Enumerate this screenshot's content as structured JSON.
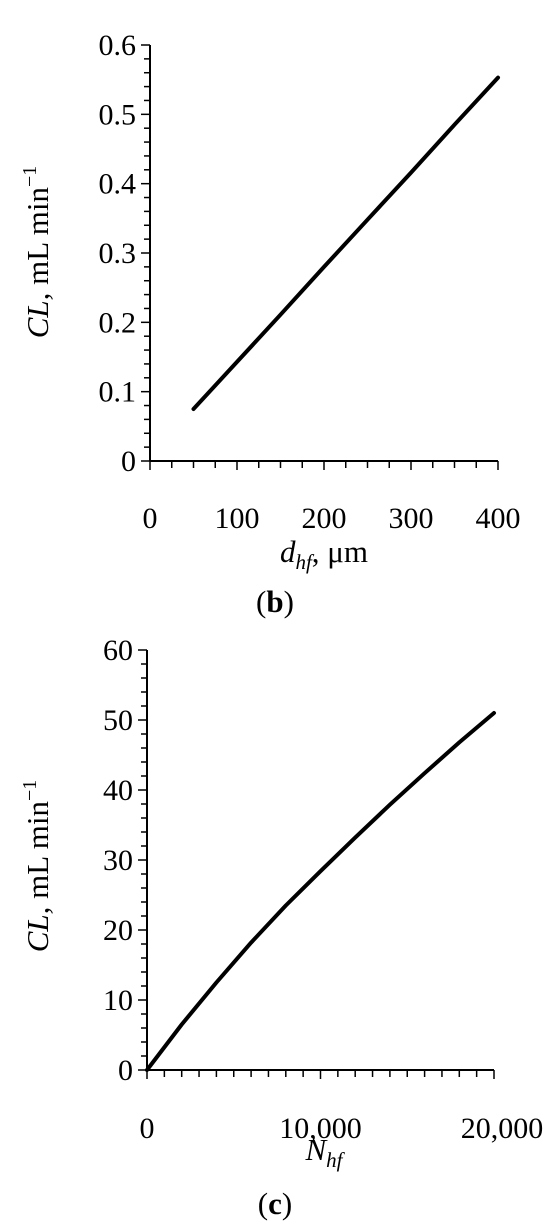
{
  "chart_data": [
    {
      "type": "line",
      "panel_label": "b",
      "xlabel": "d_hf, μm",
      "xlabel_main": "d",
      "xlabel_sub": "hf",
      "xlabel_suffix": ", μm",
      "ylabel": "CL, mL min−1",
      "ylabel_italic": "CL,",
      "ylabel_rest": " mL min",
      "ylabel_sup": "−1",
      "xlim": [
        0,
        400
      ],
      "ylim": [
        0,
        0.6
      ],
      "x_ticks": [
        "0",
        "100",
        "200",
        "300",
        "400"
      ],
      "y_ticks": [
        "0",
        "0.1",
        "0.2",
        "0.3",
        "0.4",
        "0.5",
        "0.6"
      ],
      "series": [
        {
          "x": [
            50,
            100,
            150,
            200,
            250,
            300,
            350,
            400
          ],
          "values": [
            0.075,
            0.143,
            0.211,
            0.28,
            0.348,
            0.416,
            0.485,
            0.553
          ]
        }
      ],
      "line_color": "#000000"
    },
    {
      "type": "line",
      "panel_label": "c",
      "xlabel": "N_hf",
      "xlabel_main": "N",
      "xlabel_sub": "hf",
      "xlabel_suffix": "",
      "ylabel": "CL, mL min−1",
      "ylabel_italic": "CL,",
      "ylabel_rest": " mL min",
      "ylabel_sup": "−1",
      "xlim": [
        0,
        20000
      ],
      "ylim": [
        0,
        60
      ],
      "x_ticks": [
        "0",
        "10,000",
        "20,000"
      ],
      "y_ticks": [
        "0",
        "10",
        "20",
        "30",
        "40",
        "50",
        "60"
      ],
      "series": [
        {
          "x": [
            0,
            2000,
            4000,
            6000,
            8000,
            10000,
            12000,
            14000,
            16000,
            18000,
            20000
          ],
          "values": [
            0,
            6.5,
            12.5,
            18.2,
            23.5,
            28.4,
            33.2,
            37.9,
            42.4,
            46.8,
            51.0
          ]
        }
      ],
      "line_color": "#000000"
    }
  ]
}
